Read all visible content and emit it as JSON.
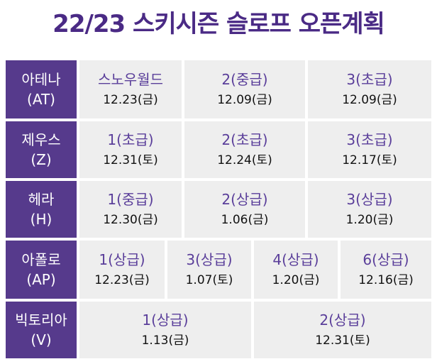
{
  "title": "22/23 스키시즌 슬로프 오픈계획",
  "rows": [
    {
      "name": "아테나",
      "code": "(AT)",
      "cells": [
        {
          "slope": "스노우월드",
          "date": "12.23(금)"
        },
        {
          "slope": "2(중급)",
          "date": "12.09(금)"
        },
        {
          "slope": "3(초급)",
          "date": "12.09(금)"
        }
      ]
    },
    {
      "name": "제우스",
      "code": "(Z)",
      "cells": [
        {
          "slope": "1(초급)",
          "date": "12.31(토)"
        },
        {
          "slope": "2(초급)",
          "date": "12.24(토)"
        },
        {
          "slope": "3(초급)",
          "date": "12.17(토)"
        }
      ]
    },
    {
      "name": "헤라",
      "code": "(H)",
      "cells": [
        {
          "slope": "1(중급)",
          "date": "12.30(금)"
        },
        {
          "slope": "2(상급)",
          "date": "1.06(금)"
        },
        {
          "slope": "3(상급)",
          "date": "1.20(금)"
        }
      ]
    },
    {
      "name": "아폴로",
      "code": "(AP)",
      "cells": [
        {
          "slope": "1(상급)",
          "date": "12.23(금)"
        },
        {
          "slope": "3(상급)",
          "date": "1.07(토)"
        },
        {
          "slope": "4(상급)",
          "date": "1.20(금)"
        },
        {
          "slope": "6(상급)",
          "date": "12.16(금)"
        }
      ]
    },
    {
      "name": "빅토리아",
      "code": "(V)",
      "cells": [
        {
          "slope": "1(상급)",
          "date": "1.13(금)"
        },
        {
          "slope": "2(상급)",
          "date": "12.31(토)"
        }
      ]
    }
  ],
  "colors": {
    "header_bg": "#563a8c",
    "cell_bg": "#eeeeee",
    "title": "#4a2a85",
    "slope_text": "#5a3e9a"
  }
}
